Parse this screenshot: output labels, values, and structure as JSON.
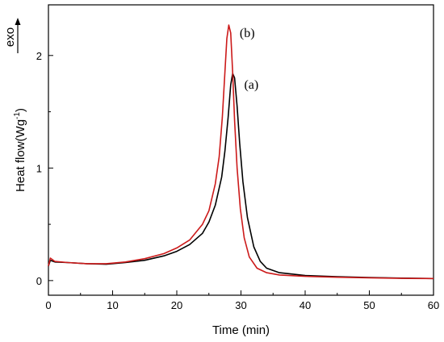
{
  "chart_data": {
    "type": "line",
    "xlabel": "Time (min)",
    "ylabel": "Heat flow(Wg",
    "ylabel_sup": "-1",
    "ylabel_close": ")",
    "xlim": [
      0,
      60
    ],
    "ylim": [
      -0.13,
      2.45
    ],
    "x_ticks": [
      0,
      10,
      20,
      30,
      40,
      50,
      60
    ],
    "y_ticks": [
      0,
      1,
      2
    ],
    "grid": false,
    "exo_label": "exo",
    "annotations": [
      {
        "text": "(b)",
        "x": 29.8,
        "y": 2.2
      },
      {
        "text": "(a)",
        "x": 30.5,
        "y": 1.74
      }
    ],
    "series": [
      {
        "color": "#000000",
        "x": [
          0,
          0.3,
          1,
          3,
          6,
          9,
          12,
          15,
          18,
          20,
          22,
          24,
          25,
          26,
          27,
          27.5,
          28,
          28.4,
          28.7,
          29.0,
          29.4,
          29.8,
          30.3,
          31,
          32,
          33,
          34,
          36,
          40,
          45,
          50,
          55,
          60
        ],
        "y": [
          0.13,
          0.18,
          0.165,
          0.16,
          0.15,
          0.145,
          0.16,
          0.18,
          0.22,
          0.26,
          0.32,
          0.42,
          0.52,
          0.67,
          0.92,
          1.15,
          1.45,
          1.74,
          1.84,
          1.8,
          1.55,
          1.22,
          0.88,
          0.56,
          0.3,
          0.17,
          0.11,
          0.07,
          0.045,
          0.035,
          0.028,
          0.022,
          0.018
        ]
      },
      {
        "color": "#cc1a1a",
        "x": [
          0,
          0.3,
          1,
          3,
          6,
          9,
          12,
          15,
          18,
          20,
          22,
          24,
          25,
          26,
          26.6,
          27.1,
          27.5,
          27.8,
          28.1,
          28.4,
          28.7,
          29.0,
          29.4,
          29.9,
          30.5,
          31.3,
          32.5,
          34,
          36,
          40,
          45,
          50,
          55,
          60
        ],
        "y": [
          0.13,
          0.2,
          0.17,
          0.16,
          0.15,
          0.15,
          0.165,
          0.195,
          0.24,
          0.29,
          0.36,
          0.5,
          0.62,
          0.86,
          1.1,
          1.45,
          1.85,
          2.15,
          2.27,
          2.2,
          1.85,
          1.42,
          1.0,
          0.64,
          0.38,
          0.21,
          0.11,
          0.07,
          0.05,
          0.038,
          0.03,
          0.025,
          0.02,
          0.018
        ]
      }
    ]
  }
}
